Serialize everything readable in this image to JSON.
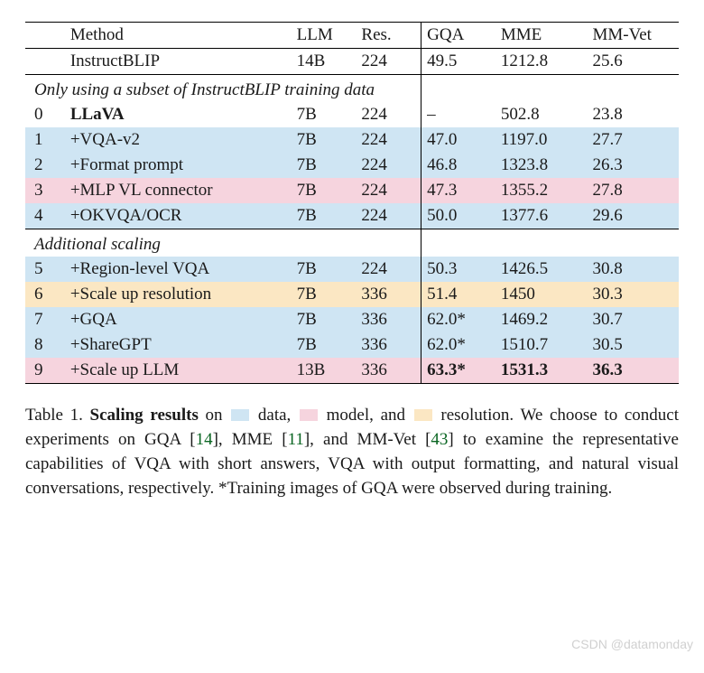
{
  "colors": {
    "data": "#cfe5f3",
    "model": "#f6d4de",
    "resolution": "#fbe7c3",
    "ref": "#0b6623"
  },
  "header": {
    "method": "Method",
    "llm": "LLM",
    "res": "Res.",
    "gqa": "GQA",
    "mme": "MME",
    "mmvet": "MM-Vet"
  },
  "baseline": {
    "method": "InstructBLIP",
    "llm": "14B",
    "res": "224",
    "gqa": "49.5",
    "mme": "1212.8",
    "mmvet": "25.6"
  },
  "sections": {
    "s1": "Only using a subset of InstructBLIP training data",
    "s2": "Additional scaling"
  },
  "rows": {
    "r0": {
      "idx": "0",
      "method": "LLaVA",
      "llm": "7B",
      "res": "224",
      "gqa": "–",
      "mme": "502.8",
      "mmvet": "23.8",
      "bg": null,
      "bold": true
    },
    "r1": {
      "idx": "1",
      "method": "+VQA-v2",
      "llm": "7B",
      "res": "224",
      "gqa": "47.0",
      "mme": "1197.0",
      "mmvet": "27.7",
      "bg": "data"
    },
    "r2": {
      "idx": "2",
      "method": "+Format prompt",
      "llm": "7B",
      "res": "224",
      "gqa": "46.8",
      "mme": "1323.8",
      "mmvet": "26.3",
      "bg": "data"
    },
    "r3": {
      "idx": "3",
      "method": "+MLP VL connector",
      "llm": "7B",
      "res": "224",
      "gqa": "47.3",
      "mme": "1355.2",
      "mmvet": "27.8",
      "bg": "model"
    },
    "r4": {
      "idx": "4",
      "method": "+OKVQA/OCR",
      "llm": "7B",
      "res": "224",
      "gqa": "50.0",
      "mme": "1377.6",
      "mmvet": "29.6",
      "bg": "data"
    },
    "r5": {
      "idx": "5",
      "method": "+Region-level VQA",
      "llm": "7B",
      "res": "224",
      "gqa": "50.3",
      "mme": "1426.5",
      "mmvet": "30.8",
      "bg": "data"
    },
    "r6": {
      "idx": "6",
      "method": "+Scale up resolution",
      "llm": "7B",
      "res": "336",
      "gqa": "51.4",
      "mme": "1450",
      "mmvet": "30.3",
      "bg": "resolution"
    },
    "r7": {
      "idx": "7",
      "method": "+GQA",
      "llm": "7B",
      "res": "336",
      "gqa": "62.0*",
      "mme": "1469.2",
      "mmvet": "30.7",
      "bg": "data"
    },
    "r8": {
      "idx": "8",
      "method": "+ShareGPT",
      "llm": "7B",
      "res": "336",
      "gqa": "62.0*",
      "mme": "1510.7",
      "mmvet": "30.5",
      "bg": "data"
    },
    "r9": {
      "idx": "9",
      "method": "+Scale up LLM",
      "llm": "13B",
      "res": "336",
      "gqa": "63.3*",
      "mme": "1531.3",
      "mmvet": "36.3",
      "bg": "model",
      "boldvals": true
    }
  },
  "caption": {
    "label": "Table 1.",
    "title": "Scaling results",
    "on": " on ",
    "data_word": " data, ",
    "model_word": " model, and ",
    "resolution_word": " resolution. ",
    "body1": "We choose to conduct experiments on GQA [",
    "ref1": "14",
    "body2": "], MME [",
    "ref2": "11",
    "body3": "], and MM-Vet [",
    "ref3": "43",
    "body4": "] to examine the representative capabilities of VQA with short answers, VQA with output formatting, and natural visual conversations, respectively. *Training images of GQA were observed during training."
  },
  "watermark": "CSDN @datamonday"
}
